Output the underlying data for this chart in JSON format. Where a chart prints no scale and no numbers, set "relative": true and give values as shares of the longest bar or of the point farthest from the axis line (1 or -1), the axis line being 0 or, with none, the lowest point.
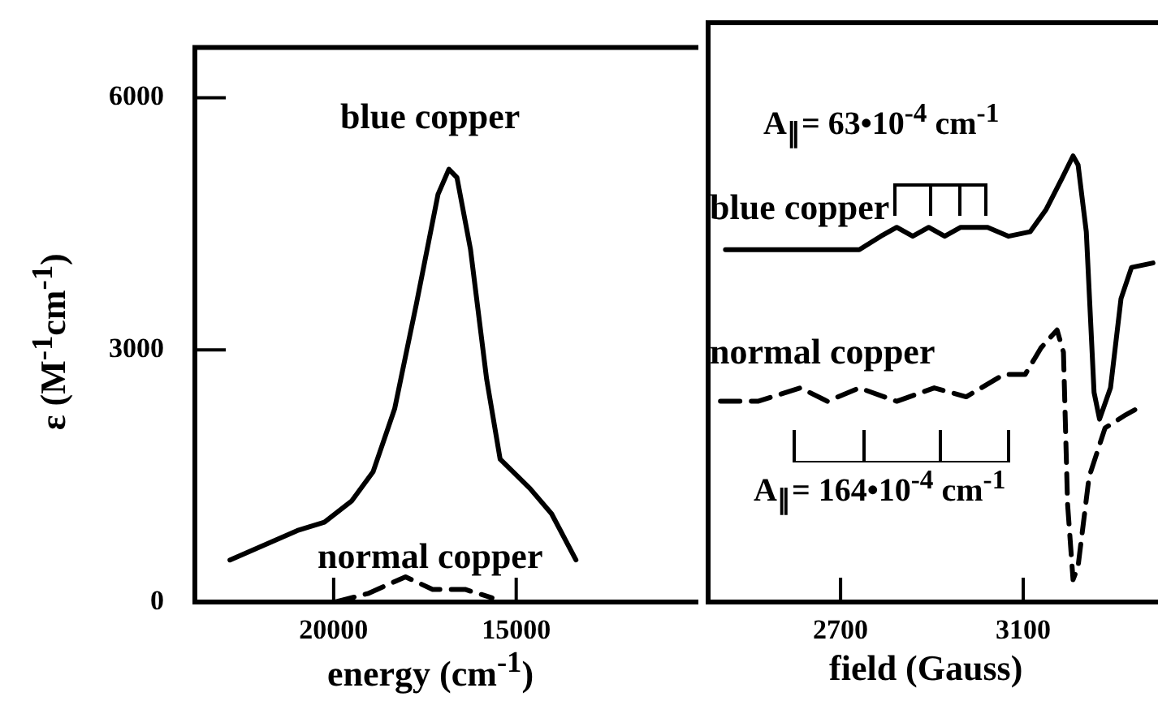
{
  "chart_data": [
    {
      "type": "line",
      "xlabel": "energy (cm$^{-1}$)",
      "ylabel": "ε (M$^{-1}$cm$^{-1}$)",
      "xlim": [
        23800,
        10100
      ],
      "ylim": [
        0,
        6600
      ],
      "xticks": [
        20000,
        15000
      ],
      "yticks": [
        0,
        3000,
        6000
      ],
      "series": [
        {
          "name": "blue copper",
          "color": "#000000",
          "line_style": "solid",
          "x": [
            22840,
            20995,
            20253,
            19511,
            18920,
            18329,
            17733,
            17142,
            16844,
            16622,
            16253,
            15809,
            15440,
            14622,
            14031,
            13364
          ],
          "values": [
            500,
            850,
            950,
            1200,
            1550,
            2300,
            3550,
            4850,
            5150,
            5050,
            4200,
            2650,
            1700,
            1350,
            1050,
            500
          ]
        },
        {
          "name": "normal copper",
          "color": "#000000",
          "line_style": "dashed",
          "x": [
            19956,
            19067,
            18031,
            17289,
            16400,
            15662
          ],
          "values": [
            0,
            100,
            300,
            150,
            150,
            50
          ]
        }
      ]
    },
    {
      "type": "line",
      "relative": true,
      "xlabel": "field (Gauss)",
      "xlim": [
        2410,
        3395
      ],
      "xticks": [
        2700,
        3100
      ],
      "tick_labels": "x",
      "annotations": [
        "A$_{∥}$= 63•10$^{-4}$ cm$^{-1}$",
        "A$_{∥}$= 164•10$^{-4}$ cm$^{-1}$"
      ],
      "series": [
        {
          "name": "blue copper",
          "color": "#000000",
          "line_style": "solid",
          "x": [
            2448,
            2741,
            2788,
            2823,
            2858,
            2893,
            2928,
            2963,
            3022,
            3068,
            3115,
            3150,
            3185,
            3209,
            3220,
            3238,
            3255,
            3267,
            3291,
            3314,
            3337,
            3384
          ],
          "values": [
            0.79,
            0.79,
            0.82,
            0.84,
            0.82,
            0.84,
            0.82,
            0.84,
            0.84,
            0.82,
            0.83,
            0.88,
            0.95,
            1,
            0.98,
            0.83,
            0.47,
            0.41,
            0.48,
            0.68,
            0.75,
            0.76
          ]
        },
        {
          "name": "normal copper",
          "color": "#000000",
          "line_style": "dashed",
          "x": [
            2437,
            2519,
            2612,
            2671,
            2741,
            2823,
            2905,
            2975,
            3057,
            3104,
            3139,
            3174,
            3188,
            3197,
            3209,
            3220,
            3244,
            3279,
            3325,
            3360
          ],
          "values": [
            0.45,
            0.45,
            0.48,
            0.45,
            0.48,
            0.45,
            0.48,
            0.46,
            0.51,
            0.51,
            0.57,
            0.61,
            0.56,
            0.22,
            0.05,
            0.08,
            0.28,
            0.39,
            0.42,
            0.44
          ]
        }
      ]
    }
  ]
}
